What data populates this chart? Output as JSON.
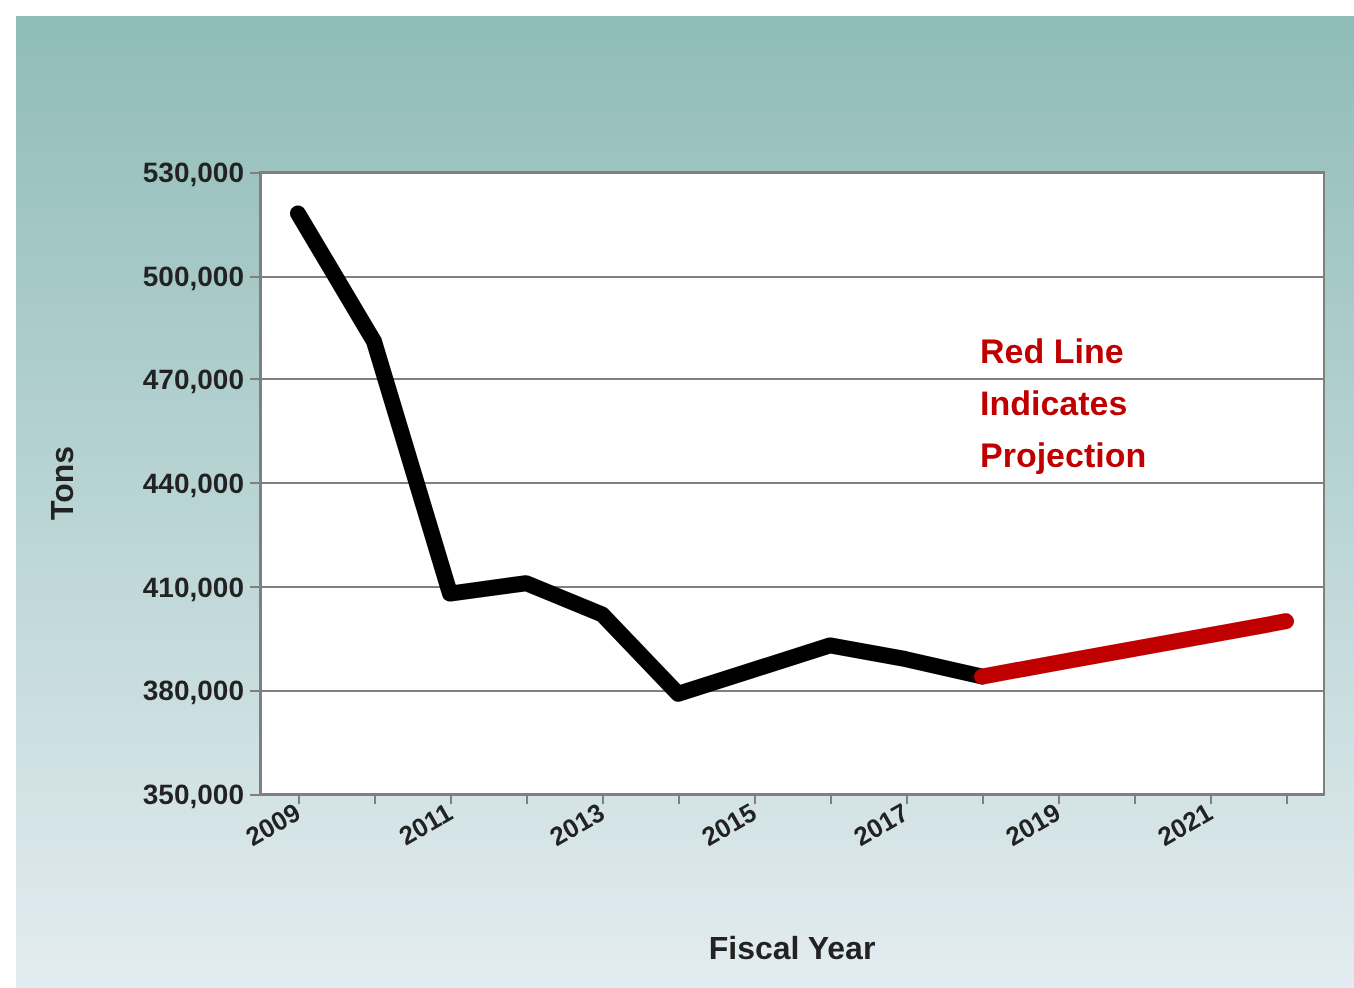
{
  "chart_data": {
    "type": "line",
    "xlabel": "Fiscal Year",
    "ylabel": "Tons",
    "categories": [
      "2009",
      null,
      "2011",
      null,
      "2013",
      null,
      "2015",
      null,
      "2017",
      null,
      "2019",
      null,
      "2021",
      null
    ],
    "series": [
      {
        "color": "#000000",
        "values": [
          518000,
          481000,
          408000,
          411000,
          402000,
          379000,
          386000,
          393000,
          389000,
          384000,
          null,
          null,
          null,
          null
        ]
      },
      {
        "color": "#c00000",
        "values": [
          null,
          null,
          null,
          null,
          null,
          null,
          null,
          null,
          null,
          384000,
          388000,
          392000,
          396000,
          400000
        ]
      }
    ],
    "ylim": [
      350000,
      530000
    ],
    "yticks": [
      {
        "value": 350000,
        "label": "350,000"
      },
      {
        "value": 380000,
        "label": "380,000"
      },
      {
        "value": 410000,
        "label": "410,000"
      },
      {
        "value": 440000,
        "label": "440,000"
      },
      {
        "value": 470000,
        "label": "470,000"
      },
      {
        "value": 500000,
        "label": "500,000"
      },
      {
        "value": 530000,
        "label": "530,000"
      }
    ],
    "grid": "y",
    "marker": "none",
    "line_style": "solid",
    "annotations": [
      "Red Line Indicates Projection"
    ]
  }
}
